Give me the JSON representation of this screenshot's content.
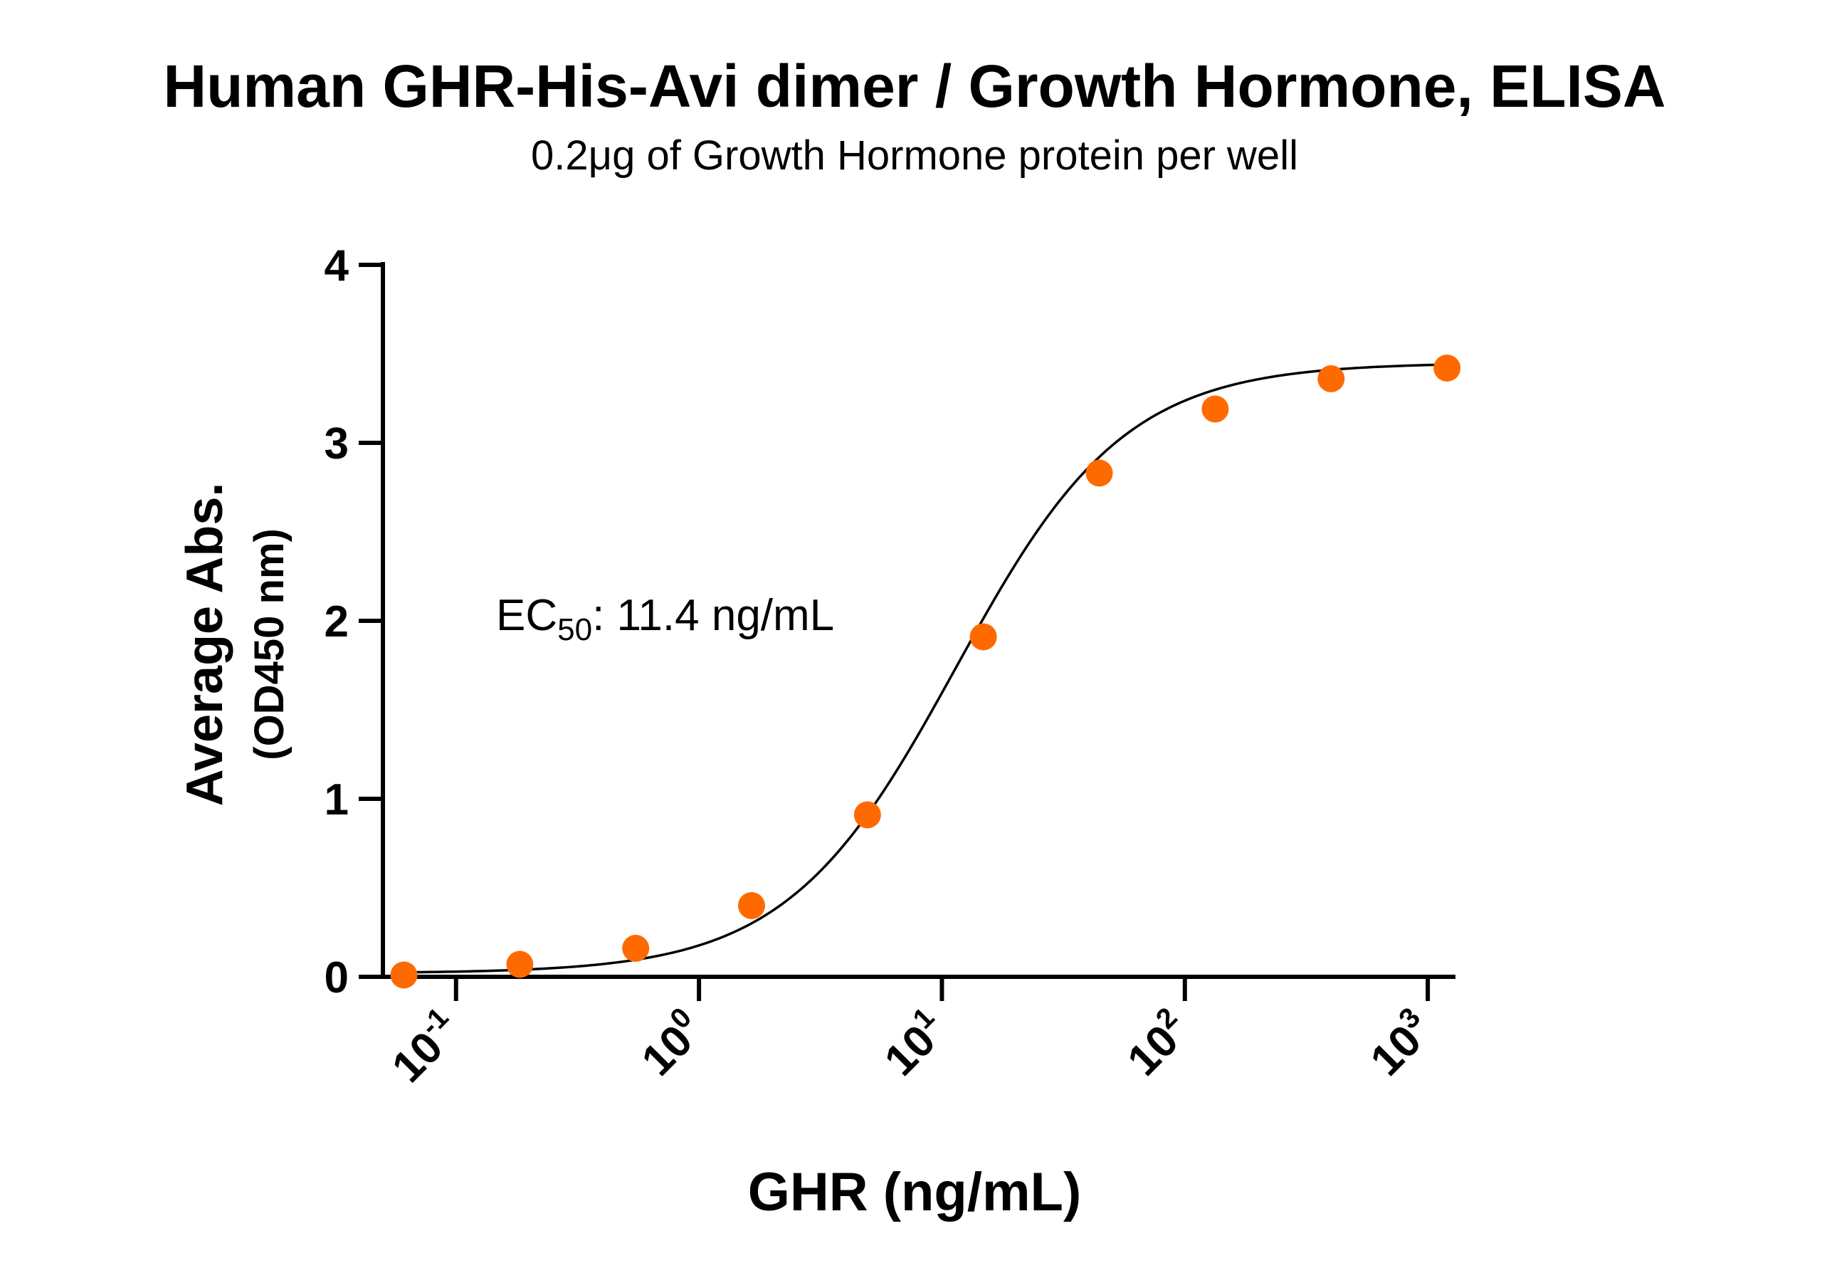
{
  "chart_data": {
    "type": "scatter",
    "title": "Human GHR-His-Avi dimer / Growth Hormone, ELISA",
    "subtitle": "0.2μg of Growth Hormone protein per well",
    "xlabel": "GHR (ng/mL)",
    "ylabel": "Average Abs.",
    "ylabel2": "(OD450 nm)",
    "x_scale": "log",
    "xlim": [
      0.05,
      1300
    ],
    "ylim": [
      0,
      4
    ],
    "x_ticks": [
      {
        "value": 0.1,
        "base": "10",
        "exp": "-1"
      },
      {
        "value": 1,
        "base": "10",
        "exp": "0"
      },
      {
        "value": 10,
        "base": "10",
        "exp": "1"
      },
      {
        "value": 100,
        "base": "10",
        "exp": "2"
      },
      {
        "value": 1000,
        "base": "10",
        "exp": "3"
      }
    ],
    "y_ticks": [
      "0",
      "1",
      "2",
      "3",
      "4"
    ],
    "series": [
      {
        "x": [
          0.061,
          0.183,
          0.549,
          1.646,
          4.938,
          14.81,
          44.44,
          133.3,
          400,
          1200
        ],
        "y": [
          0.01,
          0.07,
          0.16,
          0.4,
          0.91,
          1.91,
          2.83,
          3.19,
          3.36,
          3.42
        ]
      }
    ],
    "fit": {
      "bottom": 0.02,
      "top": 3.45,
      "ec50": 11.4,
      "hill": 1.25
    },
    "annotation": {
      "prefix": "EC",
      "sub": "50",
      "suffix": ": 11.4 ng/mL"
    },
    "grid": false,
    "legend": "none",
    "colors": {
      "point": "#FF6A00",
      "curve": "#000000",
      "axis": "#000000"
    }
  }
}
